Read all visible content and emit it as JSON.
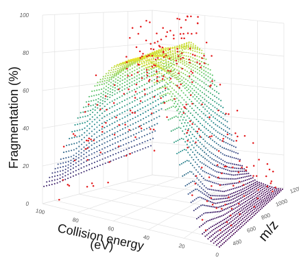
{
  "chart_data": {
    "type": "scatter",
    "title": "",
    "zlabel": "Fragmentation (%)",
    "xlabel_line1": "Collision energy",
    "xlabel_line2": "(eV)",
    "ylabel": "m/z",
    "collision_energy_ticks": [
      "100",
      "80",
      "60",
      "40",
      "20",
      "0"
    ],
    "mz_ticks": [
      "400",
      "600",
      "800",
      "1000",
      "1200"
    ],
    "fragmentation_ticks": [
      "0",
      "20",
      "40",
      "60",
      "80",
      "100"
    ],
    "collision_energy_range": [
      0,
      100
    ],
    "mz_range": [
      300,
      1200
    ],
    "fragmentation_range": [
      0,
      100
    ],
    "grid": true,
    "colormap": [
      "#440154",
      "#3b528b",
      "#21918c",
      "#5ec962",
      "#fde725"
    ],
    "surface_series": {
      "description_of_model": "fitted fragmentation surface, peak shifts with m/z",
      "samples": [
        {
          "mz": 400,
          "ce": [
            5,
            10,
            20,
            30,
            40,
            50,
            60,
            70,
            80,
            90,
            100
          ],
          "frag": [
            2,
            5,
            30,
            65,
            85,
            88,
            82,
            70,
            50,
            25,
            8
          ]
        },
        {
          "mz": 600,
          "ce": [
            5,
            10,
            20,
            30,
            40,
            50,
            60,
            70,
            80,
            90,
            100
          ],
          "frag": [
            1,
            3,
            15,
            45,
            75,
            86,
            84,
            76,
            58,
            32,
            10
          ]
        },
        {
          "mz": 800,
          "ce": [
            5,
            10,
            20,
            30,
            40,
            50,
            60,
            70,
            80,
            90,
            100
          ],
          "frag": [
            1,
            2,
            8,
            30,
            60,
            80,
            86,
            80,
            62,
            36,
            12
          ]
        },
        {
          "mz": 1000,
          "ce": [
            5,
            10,
            20,
            30,
            40,
            50,
            60,
            70,
            80,
            90,
            100
          ],
          "frag": [
            0,
            1,
            5,
            18,
            45,
            70,
            84,
            82,
            66,
            40,
            14
          ]
        },
        {
          "mz": 1200,
          "ce": [
            5,
            10,
            20,
            30,
            40,
            50,
            60,
            70,
            80,
            90,
            100
          ],
          "frag": [
            0,
            1,
            3,
            10,
            32,
            58,
            78,
            84,
            70,
            45,
            16
          ]
        }
      ]
    },
    "observed_points": {
      "color": "#e41a1c",
      "approx_count": 260,
      "points_sample": [
        {
          "ce": 45,
          "mz": 900,
          "frag": 95
        },
        {
          "ce": 55,
          "mz": 1000,
          "frag": 92
        },
        {
          "ce": 50,
          "mz": 700,
          "frag": 88
        },
        {
          "ce": 65,
          "mz": 1100,
          "frag": 90
        },
        {
          "ce": 40,
          "mz": 600,
          "frag": 85
        },
        {
          "ce": 70,
          "mz": 800,
          "frag": 80
        },
        {
          "ce": 30,
          "mz": 500,
          "frag": 60
        },
        {
          "ce": 80,
          "mz": 900,
          "frag": 55
        },
        {
          "ce": 20,
          "mz": 400,
          "frag": 20
        },
        {
          "ce": 90,
          "mz": 1100,
          "frag": 30
        },
        {
          "ce": 95,
          "mz": 600,
          "frag": 5
        },
        {
          "ce": 10,
          "mz": 1200,
          "frag": 2
        }
      ]
    }
  }
}
